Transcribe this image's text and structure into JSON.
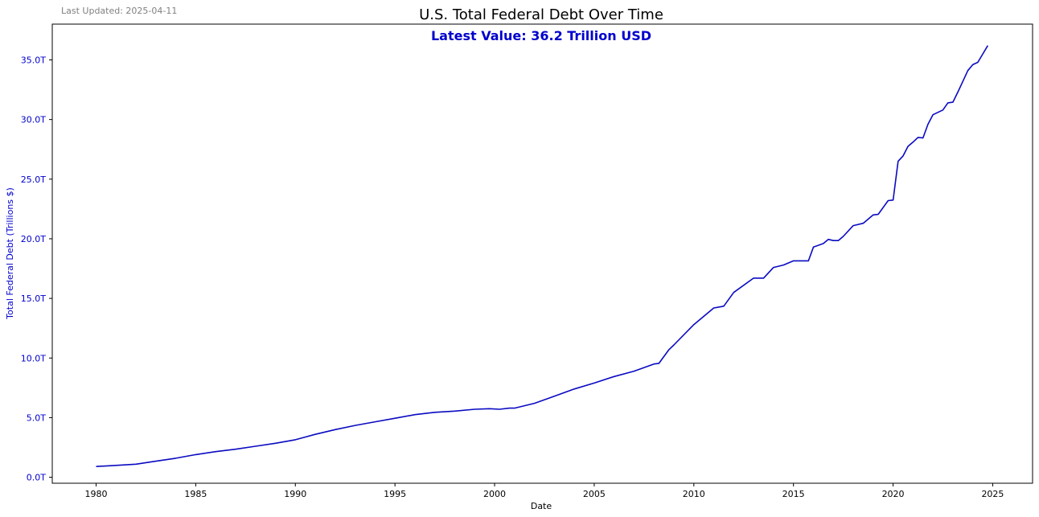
{
  "last_updated": "Last Updated: 2025-04-11",
  "colors": {
    "series": "#0a0ac2",
    "accent": "#0000cd",
    "muted": "#808080"
  },
  "chart_data": {
    "type": "line",
    "title": "U.S. Total Federal Debt Over Time",
    "annotation": "Latest Value: 36.2 Trillion USD",
    "xlabel": "Date",
    "ylabel": "Total Federal Debt (Trillions $)",
    "xlim": [
      1977.8,
      2027.0
    ],
    "ylim": [
      -0.5,
      38.0
    ],
    "xticks": [
      1980,
      1985,
      1990,
      1995,
      2000,
      2005,
      2010,
      2015,
      2020,
      2025
    ],
    "xtick_labels": [
      "1980",
      "1985",
      "1990",
      "1995",
      "2000",
      "2005",
      "2010",
      "2015",
      "2020",
      "2025"
    ],
    "yticks": [
      0,
      5,
      10,
      15,
      20,
      25,
      30,
      35
    ],
    "ytick_labels": [
      "0.0T",
      "5.0T",
      "10.0T",
      "15.0T",
      "20.0T",
      "25.0T",
      "30.0T",
      "35.0T"
    ],
    "grid": false,
    "series": [
      {
        "name": "Total Federal Debt",
        "x": [
          1980.0,
          1981.0,
          1982.0,
          1983.0,
          1984.0,
          1985.0,
          1986.0,
          1987.0,
          1988.0,
          1989.0,
          1990.0,
          1991.0,
          1992.0,
          1993.0,
          1994.0,
          1995.0,
          1996.0,
          1997.0,
          1998.0,
          1999.0,
          1999.75,
          2000.25,
          2000.75,
          2001.0,
          2001.25,
          2002.0,
          2003.0,
          2004.0,
          2005.0,
          2006.0,
          2007.0,
          2008.0,
          2008.25,
          2008.75,
          2009.0,
          2010.0,
          2011.0,
          2011.5,
          2012.0,
          2013.0,
          2013.5,
          2014.0,
          2014.5,
          2015.0,
          2015.5,
          2015.75,
          2016.0,
          2016.5,
          2016.75,
          2017.0,
          2017.25,
          2017.5,
          2018.0,
          2018.5,
          2019.0,
          2019.25,
          2019.75,
          2020.0,
          2020.25,
          2020.5,
          2020.75,
          2021.0,
          2021.25,
          2021.5,
          2021.75,
          2022.0,
          2022.5,
          2022.75,
          2023.0,
          2023.25,
          2023.5,
          2023.75,
          2024.0,
          2024.25,
          2024.5,
          2024.75
        ],
        "values": [
          0.9,
          1.0,
          1.1,
          1.35,
          1.6,
          1.9,
          2.15,
          2.35,
          2.6,
          2.85,
          3.15,
          3.6,
          4.0,
          4.35,
          4.65,
          4.95,
          5.25,
          5.45,
          5.55,
          5.7,
          5.75,
          5.7,
          5.8,
          5.8,
          5.9,
          6.2,
          6.8,
          7.4,
          7.9,
          8.45,
          8.9,
          9.5,
          9.55,
          10.7,
          11.1,
          12.8,
          14.2,
          14.35,
          15.5,
          16.7,
          16.7,
          17.6,
          17.8,
          18.15,
          18.15,
          18.15,
          19.3,
          19.6,
          19.95,
          19.85,
          19.85,
          20.2,
          21.1,
          21.3,
          22.0,
          22.05,
          23.2,
          23.25,
          26.5,
          26.95,
          27.75,
          28.1,
          28.5,
          28.45,
          29.6,
          30.4,
          30.8,
          31.4,
          31.45,
          32.3,
          33.2,
          34.1,
          34.6,
          34.8,
          35.5,
          36.2
        ]
      }
    ]
  }
}
